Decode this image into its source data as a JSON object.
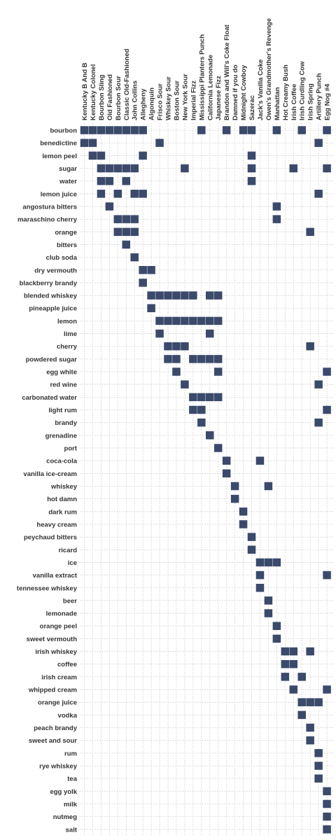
{
  "chart_data": {
    "type": "heatmap",
    "title": "",
    "xlabel": "",
    "ylabel": "",
    "legend": "none",
    "grid": true,
    "colors": {
      "cell": "#3b4a6b",
      "grid": "#c8c8c8",
      "text": "#333333"
    },
    "columns": [
      "Kentucky B And B",
      "Kentucky Colonel",
      "Bourbon Sling",
      "Old Fashioned",
      "Bourbon Sour",
      "Classic Old-Fashioned",
      "John Collins",
      "Allegheny",
      "Algonquin",
      "Frisco Sour",
      "Whiskey Sour",
      "Boston Sour",
      "New York Sour",
      "Imperial Fizz",
      "Mississippi Planters Punch",
      "California Lemonade",
      "Japanese Fizz",
      "Brandon and Will's Coke Float",
      "Damned if you do",
      "Midnight Cowboy",
      "Sazerac",
      "Jack's Vanilla Coke",
      "Owen's Grandmother's Revenge",
      "Manhattan",
      "Hot Creamy Bush",
      "Irish Coffee",
      "Irish Curdling Cow",
      "Irish Spring",
      "Artillery Punch",
      "Egg Nog #4"
    ],
    "rows": [
      "bourbon",
      "benedictine",
      "lemon peel",
      "sugar",
      "water",
      "lemon juice",
      "angostura bitters",
      "maraschino cherry",
      "orange",
      "bitters",
      "club soda",
      "dry vermouth",
      "blackberry brandy",
      "blended whiskey",
      "pineapple juice",
      "lemon",
      "lime",
      "cherry",
      "powdered sugar",
      "egg white",
      "red wine",
      "carbonated water",
      "light rum",
      "brandy",
      "grenadine",
      "port",
      "coca-cola",
      "vanilla ice-cream",
      "whiskey",
      "hot damn",
      "dark rum",
      "heavy cream",
      "peychaud bitters",
      "ricard",
      "ice",
      "vanilla extract",
      "tennessee whiskey",
      "beer",
      "lemonade",
      "orange peel",
      "sweet vermouth",
      "irish whiskey",
      "coffee",
      "irish cream",
      "whipped cream",
      "orange juice",
      "vodka",
      "peach brandy",
      "sweet and sour",
      "rum",
      "rye whiskey",
      "tea",
      "egg yolk",
      "milk",
      "nutmeg",
      "salt"
    ],
    "cells": [
      [
        0,
        0
      ],
      [
        0,
        1
      ],
      [
        0,
        2
      ],
      [
        0,
        3
      ],
      [
        0,
        4
      ],
      [
        0,
        5
      ],
      [
        0,
        6
      ],
      [
        0,
        7
      ],
      [
        0,
        14
      ],
      [
        0,
        17
      ],
      [
        0,
        19
      ],
      [
        0,
        20
      ],
      [
        0,
        23
      ],
      [
        0,
        26
      ],
      [
        0,
        29
      ],
      [
        1,
        0
      ],
      [
        1,
        1
      ],
      [
        1,
        9
      ],
      [
        1,
        28
      ],
      [
        2,
        1
      ],
      [
        2,
        2
      ],
      [
        2,
        7
      ],
      [
        2,
        20
      ],
      [
        3,
        2
      ],
      [
        3,
        3
      ],
      [
        3,
        4
      ],
      [
        3,
        5
      ],
      [
        3,
        6
      ],
      [
        3,
        12
      ],
      [
        3,
        20
      ],
      [
        3,
        25
      ],
      [
        3,
        29
      ],
      [
        4,
        2
      ],
      [
        4,
        3
      ],
      [
        4,
        5
      ],
      [
        4,
        20
      ],
      [
        5,
        2
      ],
      [
        5,
        4
      ],
      [
        5,
        6
      ],
      [
        5,
        7
      ],
      [
        5,
        28
      ],
      [
        6,
        3
      ],
      [
        6,
        23
      ],
      [
        7,
        4
      ],
      [
        7,
        5
      ],
      [
        7,
        6
      ],
      [
        7,
        23
      ],
      [
        8,
        4
      ],
      [
        8,
        5
      ],
      [
        8,
        6
      ],
      [
        8,
        27
      ],
      [
        9,
        5
      ],
      [
        10,
        6
      ],
      [
        11,
        7
      ],
      [
        11,
        8
      ],
      [
        12,
        7
      ],
      [
        13,
        8
      ],
      [
        13,
        9
      ],
      [
        13,
        10
      ],
      [
        13,
        11
      ],
      [
        13,
        12
      ],
      [
        13,
        13
      ],
      [
        13,
        15
      ],
      [
        13,
        16
      ],
      [
        14,
        8
      ],
      [
        15,
        9
      ],
      [
        15,
        10
      ],
      [
        15,
        11
      ],
      [
        15,
        12
      ],
      [
        15,
        13
      ],
      [
        15,
        14
      ],
      [
        15,
        15
      ],
      [
        15,
        16
      ],
      [
        16,
        9
      ],
      [
        16,
        15
      ],
      [
        17,
        10
      ],
      [
        17,
        11
      ],
      [
        17,
        12
      ],
      [
        17,
        27
      ],
      [
        18,
        10
      ],
      [
        18,
        11
      ],
      [
        18,
        13
      ],
      [
        18,
        14
      ],
      [
        18,
        15
      ],
      [
        18,
        16
      ],
      [
        19,
        11
      ],
      [
        19,
        16
      ],
      [
        19,
        29
      ],
      [
        20,
        12
      ],
      [
        20,
        28
      ],
      [
        21,
        13
      ],
      [
        21,
        14
      ],
      [
        21,
        15
      ],
      [
        21,
        16
      ],
      [
        22,
        13
      ],
      [
        22,
        14
      ],
      [
        22,
        29
      ],
      [
        23,
        14
      ],
      [
        23,
        28
      ],
      [
        24,
        15
      ],
      [
        25,
        16
      ],
      [
        26,
        17
      ],
      [
        26,
        21
      ],
      [
        27,
        17
      ],
      [
        28,
        18
      ],
      [
        28,
        22
      ],
      [
        29,
        18
      ],
      [
        30,
        19
      ],
      [
        31,
        19
      ],
      [
        32,
        20
      ],
      [
        33,
        20
      ],
      [
        34,
        21
      ],
      [
        34,
        22
      ],
      [
        34,
        23
      ],
      [
        35,
        21
      ],
      [
        35,
        29
      ],
      [
        36,
        21
      ],
      [
        37,
        22
      ],
      [
        38,
        22
      ],
      [
        39,
        23
      ],
      [
        40,
        23
      ],
      [
        41,
        24
      ],
      [
        41,
        25
      ],
      [
        41,
        27
      ],
      [
        42,
        24
      ],
      [
        42,
        25
      ],
      [
        43,
        24
      ],
      [
        43,
        26
      ],
      [
        44,
        25
      ],
      [
        44,
        29
      ],
      [
        45,
        26
      ],
      [
        45,
        27
      ],
      [
        45,
        28
      ],
      [
        46,
        26
      ],
      [
        47,
        27
      ],
      [
        48,
        27
      ],
      [
        49,
        28
      ],
      [
        50,
        28
      ],
      [
        51,
        28
      ],
      [
        52,
        29
      ],
      [
        53,
        29
      ],
      [
        54,
        29
      ],
      [
        55,
        29
      ]
    ]
  }
}
